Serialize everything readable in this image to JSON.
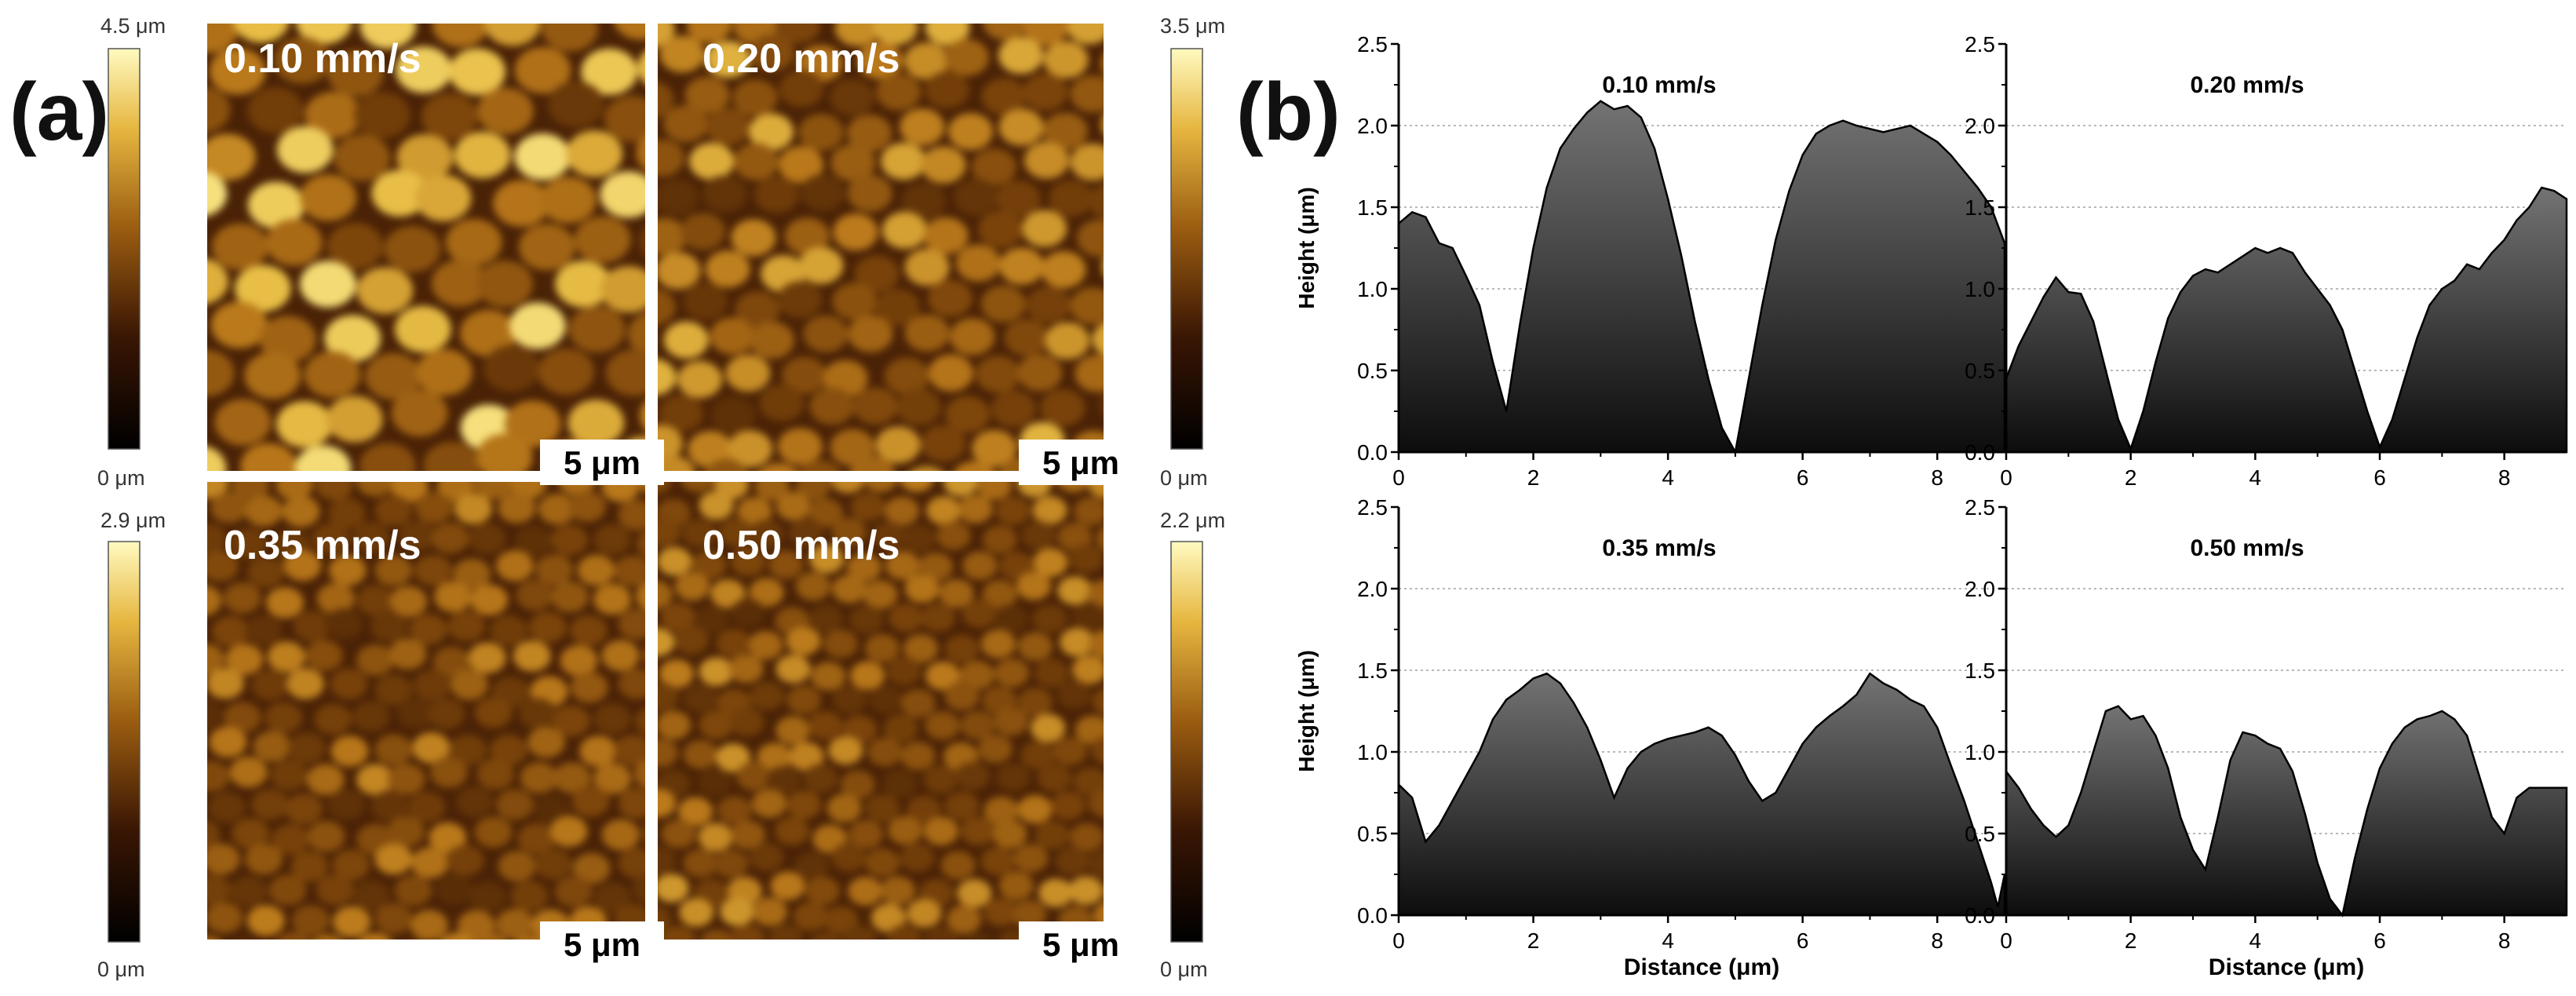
{
  "figure": {
    "panel_a": {
      "label": "(a)",
      "images": [
        {
          "speed": "0.10 mm/s",
          "scale_bar": "5 μm"
        },
        {
          "speed": "0.20 mm/s",
          "scale_bar": "5 μm"
        },
        {
          "speed": "0.35 mm/s",
          "scale_bar": "5 μm"
        },
        {
          "speed": "0.50 mm/s",
          "scale_bar": "5 μm"
        }
      ],
      "colorbars": [
        {
          "max": "4.5 μm",
          "min": "0 μm"
        },
        {
          "max": "3.5 μm",
          "min": "0 μm"
        },
        {
          "max": "2.9 μm",
          "min": "0 μm"
        },
        {
          "max": "2.2 μm",
          "min": "0 μm"
        }
      ]
    },
    "panel_b": {
      "label": "(b)"
    },
    "colors": {
      "afm_dark": "#1a0800",
      "afm_mid": "#a56814",
      "afm_bright": "#fff59a",
      "profile_fill_top": "#6e6e6e",
      "profile_fill_bottom": "#0d0d0d"
    }
  },
  "chart_data": [
    {
      "type": "area",
      "title": "0.10 mm/s",
      "xlabel": "",
      "ylabel": "Height (μm)",
      "xlim": [
        0,
        9
      ],
      "ylim": [
        0,
        2.5
      ],
      "xticks": [
        "0",
        "2",
        "4",
        "6",
        "8"
      ],
      "yticks": [
        "0.0",
        "0.5",
        "1.0",
        "1.5",
        "2.0",
        "2.5"
      ],
      "grid": true,
      "x": [
        0,
        0.2,
        0.4,
        0.6,
        0.8,
        1.0,
        1.2,
        1.4,
        1.6,
        1.8,
        2.0,
        2.2,
        2.4,
        2.6,
        2.8,
        3.0,
        3.2,
        3.4,
        3.6,
        3.8,
        4.0,
        4.2,
        4.4,
        4.6,
        4.8,
        5.0,
        5.2,
        5.4,
        5.6,
        5.8,
        6.0,
        6.2,
        6.4,
        6.6,
        6.8,
        7.0,
        7.2,
        7.4,
        7.6,
        7.8,
        8.0,
        8.2,
        8.4,
        8.6,
        8.8,
        9.0
      ],
      "y": [
        1.4,
        1.47,
        1.44,
        1.28,
        1.25,
        1.08,
        0.9,
        0.55,
        0.25,
        0.78,
        1.25,
        1.62,
        1.86,
        1.98,
        2.08,
        2.15,
        2.1,
        2.12,
        2.05,
        1.86,
        1.55,
        1.2,
        0.8,
        0.45,
        0.15,
        0.0,
        0.45,
        0.9,
        1.3,
        1.6,
        1.82,
        1.95,
        2.0,
        2.03,
        2.0,
        1.98,
        1.96,
        1.98,
        2.0,
        1.95,
        1.9,
        1.82,
        1.72,
        1.62,
        1.5,
        1.28
      ]
    },
    {
      "type": "area",
      "title": "0.20 mm/s",
      "xlabel": "",
      "ylabel": "",
      "xlim": [
        0,
        9
      ],
      "ylim": [
        0,
        2.5
      ],
      "xticks": [
        "0",
        "2",
        "4",
        "6",
        "8"
      ],
      "yticks": [
        "0.0",
        "0.5",
        "1.0",
        "1.5",
        "2.0",
        "2.5"
      ],
      "grid": true,
      "x": [
        0,
        0.2,
        0.4,
        0.6,
        0.8,
        1.0,
        1.2,
        1.4,
        1.6,
        1.8,
        2.0,
        2.2,
        2.4,
        2.6,
        2.8,
        3.0,
        3.2,
        3.4,
        3.6,
        3.8,
        4.0,
        4.2,
        4.4,
        4.6,
        4.8,
        5.0,
        5.2,
        5.4,
        5.6,
        5.8,
        6.0,
        6.2,
        6.4,
        6.6,
        6.8,
        7.0,
        7.2,
        7.4,
        7.6,
        7.8,
        8.0,
        8.2,
        8.4,
        8.6,
        8.8,
        9.0
      ],
      "y": [
        0.45,
        0.65,
        0.8,
        0.95,
        1.07,
        0.98,
        0.97,
        0.8,
        0.5,
        0.2,
        0.02,
        0.25,
        0.55,
        0.82,
        0.98,
        1.08,
        1.12,
        1.1,
        1.15,
        1.2,
        1.25,
        1.22,
        1.25,
        1.22,
        1.1,
        1.0,
        0.9,
        0.75,
        0.5,
        0.25,
        0.03,
        0.2,
        0.45,
        0.7,
        0.9,
        1.0,
        1.05,
        1.15,
        1.12,
        1.22,
        1.3,
        1.42,
        1.5,
        1.62,
        1.6,
        1.55
      ]
    },
    {
      "type": "area",
      "title": "0.35 mm/s",
      "xlabel": "Distance (μm)",
      "ylabel": "Height (μm)",
      "xlim": [
        0,
        9
      ],
      "ylim": [
        0,
        2.5
      ],
      "xticks": [
        "0",
        "2",
        "4",
        "6",
        "8"
      ],
      "yticks": [
        "0.0",
        "0.5",
        "1.0",
        "1.5",
        "2.0",
        "2.5"
      ],
      "grid": true,
      "x": [
        0,
        0.2,
        0.4,
        0.6,
        0.8,
        1.0,
        1.2,
        1.4,
        1.6,
        1.8,
        2.0,
        2.2,
        2.4,
        2.6,
        2.8,
        3.0,
        3.2,
        3.4,
        3.6,
        3.8,
        4.0,
        4.2,
        4.4,
        4.6,
        4.8,
        5.0,
        5.2,
        5.4,
        5.6,
        5.8,
        6.0,
        6.2,
        6.4,
        6.6,
        6.8,
        7.0,
        7.2,
        7.4,
        7.6,
        7.8,
        8.0,
        8.2,
        8.4,
        8.6,
        8.8,
        8.9,
        9.0
      ],
      "y": [
        0.8,
        0.72,
        0.45,
        0.55,
        0.7,
        0.85,
        1.0,
        1.2,
        1.32,
        1.38,
        1.45,
        1.48,
        1.42,
        1.3,
        1.15,
        0.95,
        0.72,
        0.9,
        1.0,
        1.05,
        1.08,
        1.1,
        1.12,
        1.15,
        1.1,
        0.98,
        0.82,
        0.7,
        0.75,
        0.9,
        1.05,
        1.15,
        1.22,
        1.28,
        1.35,
        1.48,
        1.42,
        1.38,
        1.32,
        1.28,
        1.15,
        0.92,
        0.7,
        0.45,
        0.2,
        0.05,
        0.25
      ]
    },
    {
      "type": "area",
      "title": "0.50 mm/s",
      "xlabel": "Distance (μm)",
      "ylabel": "",
      "xlim": [
        0,
        9
      ],
      "ylim": [
        0,
        2.5
      ],
      "xticks": [
        "0",
        "2",
        "4",
        "6",
        "8"
      ],
      "yticks": [
        "0.0",
        "0.5",
        "1.0",
        "1.5",
        "2.0",
        "2.5"
      ],
      "grid": true,
      "x": [
        0,
        0.2,
        0.4,
        0.6,
        0.8,
        1.0,
        1.2,
        1.4,
        1.6,
        1.8,
        2.0,
        2.2,
        2.4,
        2.6,
        2.8,
        3.0,
        3.2,
        3.4,
        3.6,
        3.8,
        4.0,
        4.2,
        4.4,
        4.6,
        4.8,
        5.0,
        5.2,
        5.4,
        5.6,
        5.8,
        6.0,
        6.2,
        6.4,
        6.6,
        6.8,
        7.0,
        7.2,
        7.4,
        7.6,
        7.8,
        8.0,
        8.2,
        8.4,
        8.6,
        8.8,
        9.0
      ],
      "y": [
        0.88,
        0.78,
        0.65,
        0.55,
        0.48,
        0.55,
        0.75,
        1.0,
        1.25,
        1.28,
        1.2,
        1.22,
        1.1,
        0.9,
        0.6,
        0.4,
        0.28,
        0.6,
        0.95,
        1.12,
        1.1,
        1.05,
        1.02,
        0.88,
        0.62,
        0.32,
        0.1,
        0.0,
        0.35,
        0.65,
        0.9,
        1.05,
        1.15,
        1.2,
        1.22,
        1.25,
        1.2,
        1.1,
        0.85,
        0.6,
        0.5,
        0.72,
        0.78,
        0.78,
        0.78,
        0.78
      ]
    }
  ]
}
